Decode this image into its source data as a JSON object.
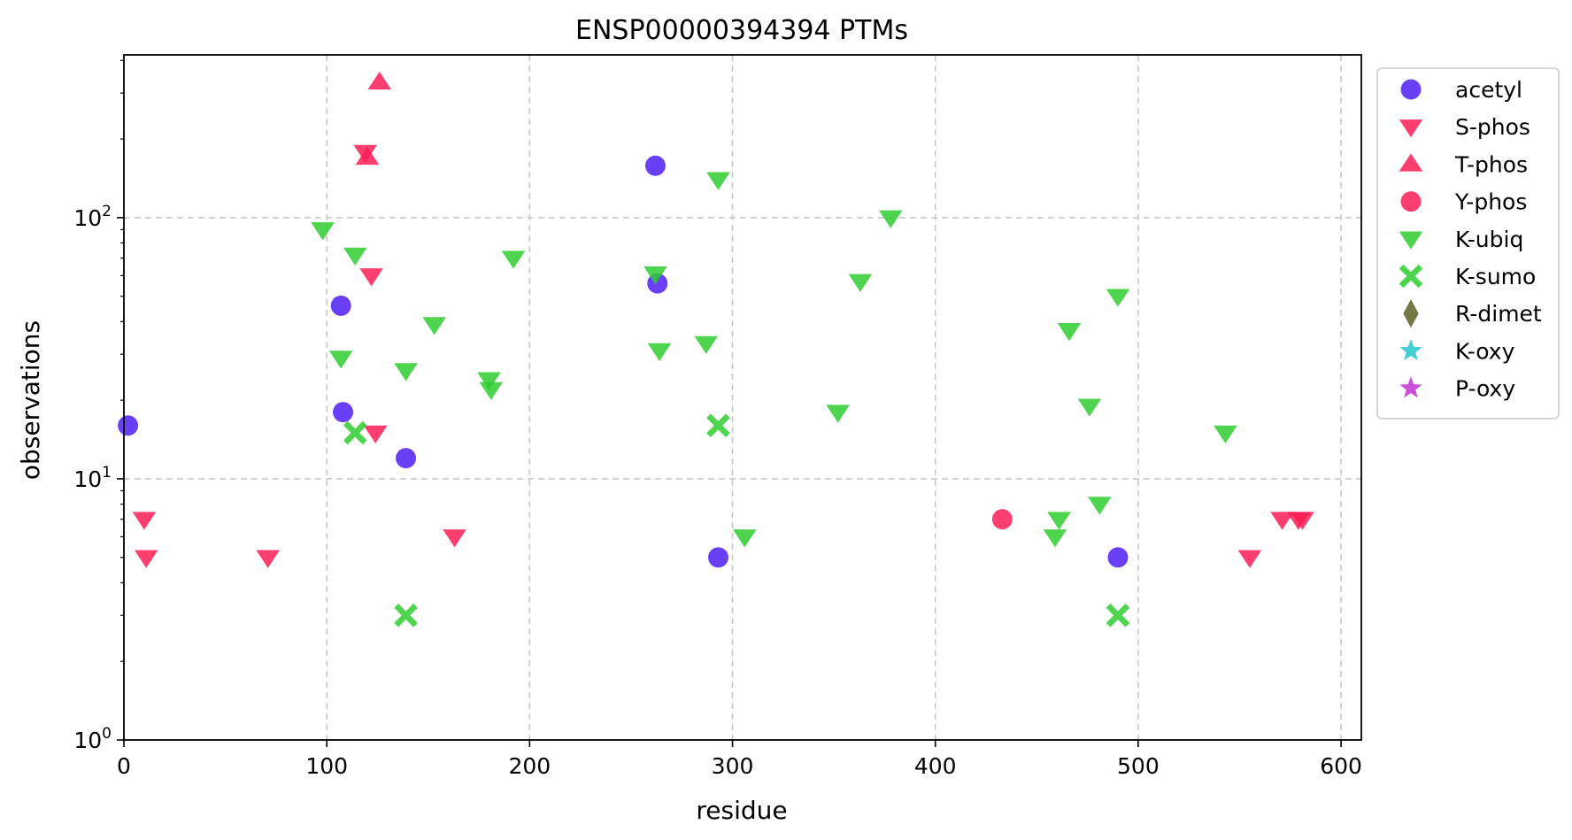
{
  "chart_data": {
    "type": "scatter",
    "title": "ENSP00000394394 PTMs",
    "xlabel": "residue",
    "ylabel": "observations",
    "xlim": [
      0,
      610
    ],
    "ylim": [
      1,
      420
    ],
    "yscale": "log",
    "grid": true,
    "legend_placement": "outside-right-top",
    "x_ticks": [
      0,
      100,
      200,
      300,
      400,
      500,
      600
    ],
    "y_ticks": [
      {
        "value": 1,
        "base": "10",
        "exp": "0"
      },
      {
        "value": 10,
        "base": "10",
        "exp": "1"
      },
      {
        "value": 100,
        "base": "10",
        "exp": "2"
      }
    ],
    "series": [
      {
        "name": "acetyl",
        "marker": "circle",
        "color": "#4f1ef5",
        "points": [
          [
            2,
            16
          ],
          [
            107,
            46
          ],
          [
            108,
            18
          ],
          [
            139,
            12
          ],
          [
            262,
            158
          ],
          [
            263,
            56
          ],
          [
            293,
            5
          ],
          [
            490,
            5
          ]
        ]
      },
      {
        "name": "S-phos",
        "marker": "triangle-down",
        "color": "#fb1d55",
        "points": [
          [
            10,
            7
          ],
          [
            11,
            5
          ],
          [
            71,
            5
          ],
          [
            119,
            178
          ],
          [
            122,
            60
          ],
          [
            124,
            15
          ],
          [
            163,
            6
          ],
          [
            555,
            5
          ],
          [
            571,
            7
          ],
          [
            579,
            7
          ],
          [
            581,
            7
          ]
        ]
      },
      {
        "name": "T-phos",
        "marker": "triangle-up",
        "color": "#fb1d55",
        "points": [
          [
            120,
            170
          ],
          [
            126,
            330
          ]
        ]
      },
      {
        "name": "Y-phos",
        "marker": "circle",
        "color": "#fb1d55",
        "points": [
          [
            433,
            7
          ]
        ]
      },
      {
        "name": "K-ubiq",
        "marker": "triangle-down",
        "color": "#2fcd2f",
        "points": [
          [
            98,
            90
          ],
          [
            107,
            29
          ],
          [
            114,
            72
          ],
          [
            139,
            26
          ],
          [
            153,
            39
          ],
          [
            180,
            24
          ],
          [
            181,
            22
          ],
          [
            192,
            70
          ],
          [
            262,
            61
          ],
          [
            264,
            31
          ],
          [
            287,
            33
          ],
          [
            293,
            140
          ],
          [
            306,
            6
          ],
          [
            352,
            18
          ],
          [
            363,
            57
          ],
          [
            378,
            100
          ],
          [
            459,
            6
          ],
          [
            461,
            7
          ],
          [
            466,
            37
          ],
          [
            476,
            19
          ],
          [
            481,
            8
          ],
          [
            490,
            50
          ],
          [
            543,
            15
          ]
        ]
      },
      {
        "name": "K-sumo",
        "marker": "x-thick",
        "color": "#2fcd2f",
        "points": [
          [
            114,
            15
          ],
          [
            139,
            3
          ],
          [
            293,
            16
          ],
          [
            490,
            3
          ]
        ]
      },
      {
        "name": "R-dimet",
        "marker": "diamond",
        "color": "#5a6024",
        "points": []
      },
      {
        "name": "K-oxy",
        "marker": "star",
        "color": "#21c8cc",
        "points": []
      },
      {
        "name": "P-oxy",
        "marker": "star",
        "color": "#c233d3",
        "points": []
      }
    ]
  }
}
